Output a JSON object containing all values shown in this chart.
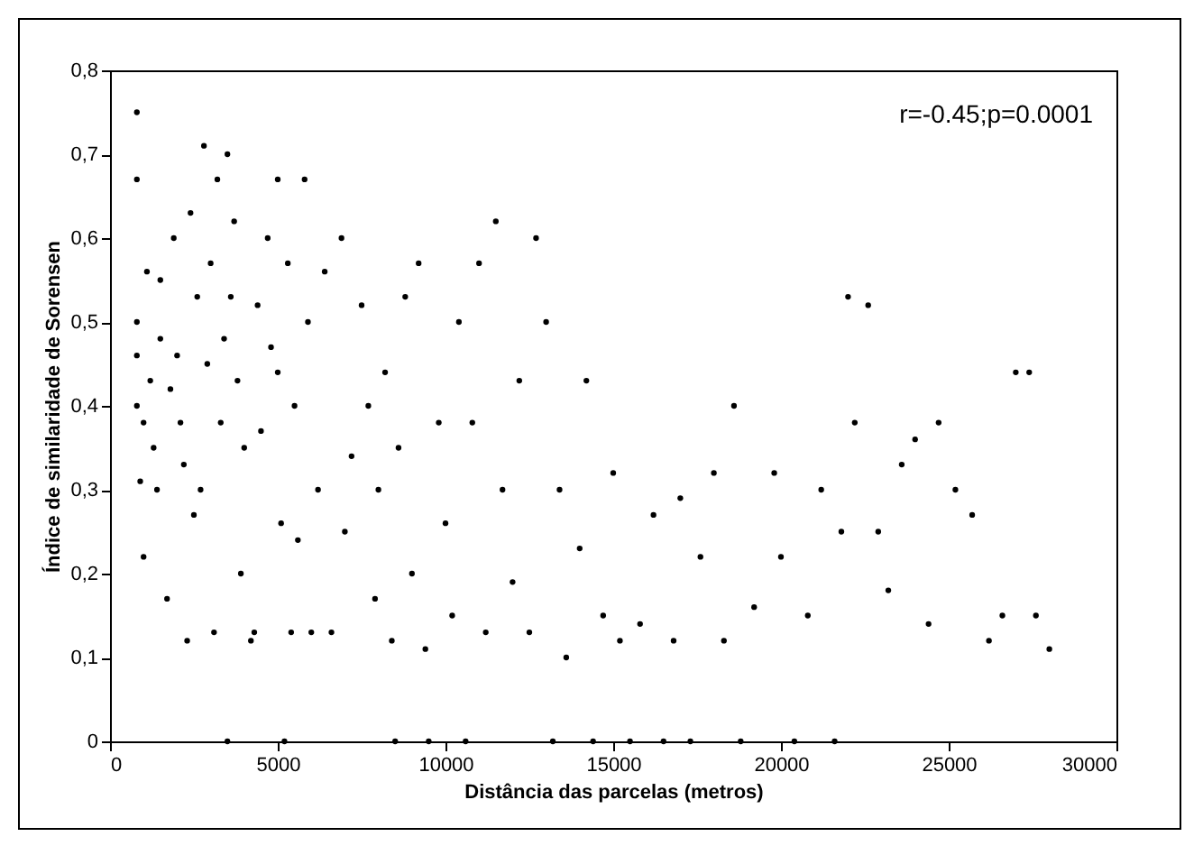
{
  "chart_data": {
    "type": "scatter",
    "xlabel": "Distância das parcelas (metros)",
    "ylabel": "Índice de similaridade de Sorensen",
    "annotations": [
      "r=-0.45;p=0.0001"
    ],
    "marker": "circle",
    "grid": false,
    "xlim": [
      0,
      30000
    ],
    "xticks": [
      0,
      5000,
      10000,
      15000,
      20000,
      25000,
      30000
    ],
    "ylim": [
      0,
      0.8
    ],
    "yticks": [
      {
        "value": 0,
        "label": "0"
      },
      {
        "value": 0.1,
        "label": "0,1"
      },
      {
        "value": 0.2,
        "label": "0,2"
      },
      {
        "value": 0.3,
        "label": "0,3"
      },
      {
        "value": 0.4,
        "label": "0,4"
      },
      {
        "value": 0.5,
        "label": "0,5"
      },
      {
        "value": 0.6,
        "label": "0,6"
      },
      {
        "value": 0.7,
        "label": "0,7"
      },
      {
        "value": 0.8,
        "label": "0,8"
      }
    ],
    "series": [
      {
        "color": "#000000",
        "x": [
          800,
          800,
          800,
          800,
          800,
          900,
          1000,
          1000,
          1100,
          1200,
          1300,
          1400,
          1500,
          1500,
          1700,
          1800,
          1900,
          2000,
          2100,
          2200,
          2300,
          2400,
          2500,
          2600,
          2700,
          2800,
          2900,
          3000,
          3100,
          3200,
          3300,
          3400,
          3500,
          3500,
          3600,
          3700,
          3800,
          3900,
          4000,
          4200,
          4300,
          4400,
          4500,
          4700,
          4800,
          5000,
          5000,
          5100,
          5200,
          5300,
          5400,
          5500,
          5600,
          5800,
          5900,
          6000,
          6200,
          6400,
          6600,
          6900,
          7000,
          7200,
          7500,
          7700,
          7900,
          8000,
          8200,
          8400,
          8500,
          8600,
          8800,
          9000,
          9200,
          9400,
          9500,
          9800,
          10000,
          10200,
          10400,
          10600,
          10800,
          11000,
          11200,
          11500,
          11700,
          12000,
          12200,
          12500,
          12700,
          13000,
          13200,
          13400,
          13600,
          14000,
          14200,
          14400,
          14700,
          15000,
          15200,
          15500,
          15800,
          16200,
          16500,
          16800,
          17000,
          17300,
          17600,
          18000,
          18300,
          18600,
          18800,
          19200,
          19800,
          20000,
          20400,
          20800,
          21200,
          21600,
          21800,
          22000,
          22200,
          22600,
          22900,
          23200,
          23600,
          24000,
          24400,
          24700,
          25200,
          25700,
          26200,
          26600,
          27000,
          27400,
          27600,
          28000
        ],
        "values": [
          0.75,
          0.67,
          0.5,
          0.46,
          0.4,
          0.31,
          0.38,
          0.22,
          0.56,
          0.43,
          0.35,
          0.3,
          0.48,
          0.55,
          0.17,
          0.42,
          0.6,
          0.46,
          0.38,
          0.33,
          0.12,
          0.63,
          0.27,
          0.53,
          0.3,
          0.71,
          0.45,
          0.57,
          0.13,
          0.67,
          0.38,
          0.48,
          0.7,
          0,
          0.53,
          0.62,
          0.43,
          0.2,
          0.35,
          0.12,
          0.13,
          0.52,
          0.37,
          0.6,
          0.47,
          0.67,
          0.44,
          0.26,
          0,
          0.57,
          0.13,
          0.4,
          0.24,
          0.67,
          0.5,
          0.13,
          0.3,
          0.56,
          0.13,
          0.6,
          0.25,
          0.34,
          0.52,
          0.4,
          0.17,
          0.3,
          0.44,
          0.12,
          0,
          0.35,
          0.53,
          0.2,
          0.57,
          0.11,
          0,
          0.38,
          0.26,
          0.15,
          0.5,
          0,
          0.38,
          0.57,
          0.13,
          0.62,
          0.3,
          0.19,
          0.43,
          0.13,
          0.6,
          0.5,
          0,
          0.3,
          0.1,
          0.23,
          0.43,
          0,
          0.15,
          0.32,
          0.12,
          0,
          0.14,
          0.27,
          0,
          0.12,
          0.29,
          0,
          0.22,
          0.32,
          0.12,
          0.4,
          0,
          0.16,
          0.32,
          0.22,
          0,
          0.15,
          0.3,
          0,
          0.25,
          0.53,
          0.38,
          0.52,
          0.25,
          0.18,
          0.33,
          0.36,
          0.14,
          0.38,
          0.3,
          0.27,
          0.12,
          0.15,
          0.44,
          0.44,
          0.15,
          0.11
        ]
      }
    ]
  }
}
